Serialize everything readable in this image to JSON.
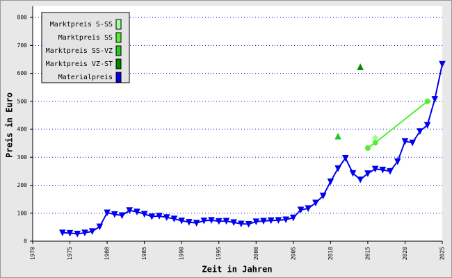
{
  "chart_data": {
    "type": "line",
    "xlabel": "Zeit in Jahren",
    "ylabel": "Preis in Euro",
    "xlim": [
      1970,
      2025
    ],
    "xticks": [
      1970,
      1975,
      1980,
      1985,
      1990,
      1995,
      2000,
      2005,
      2010,
      2015,
      2020,
      2025
    ],
    "ylim": [
      0,
      840
    ],
    "yticks": [
      0,
      100,
      200,
      300,
      400,
      500,
      600,
      700,
      800
    ],
    "grid": true,
    "legend": "upper left",
    "series": [
      {
        "name": "Marktpreis S-SS",
        "color": "#99ff99",
        "marker": "diamond",
        "x": [
          2016
        ],
        "values": [
          370
        ]
      },
      {
        "name": "Marktpreis SS",
        "color": "#55ee33",
        "marker": "circle",
        "x": [
          2015,
          2016,
          2023
        ],
        "values": [
          333,
          352,
          500
        ]
      },
      {
        "name": "Marktpreis SS-VZ",
        "color": "#22cc22",
        "marker": "triangle-up",
        "x": [
          2011
        ],
        "values": [
          375
        ]
      },
      {
        "name": "Marktpreis VZ-ST",
        "color": "#008800",
        "marker": "triangle-up",
        "x": [
          2014
        ],
        "values": [
          623
        ]
      },
      {
        "name": "Materialpreis",
        "color": "#0000ee",
        "marker": "triangle-down",
        "x": [
          1974,
          1975,
          1976,
          1977,
          1978,
          1979,
          1980,
          1981,
          1982,
          1983,
          1984,
          1985,
          1986,
          1987,
          1988,
          1989,
          1990,
          1991,
          1992,
          1993,
          1994,
          1995,
          1996,
          1997,
          1998,
          1999,
          2000,
          2001,
          2002,
          2003,
          2004,
          2005,
          2006,
          2007,
          2008,
          2009,
          2010,
          2011,
          2012,
          2013,
          2014,
          2015,
          2016,
          2017,
          2018,
          2019,
          2020,
          2021,
          2022,
          2023,
          2024,
          2025
        ],
        "values": [
          30,
          29,
          26,
          30,
          35,
          52,
          102,
          96,
          92,
          110,
          105,
          97,
          88,
          90,
          85,
          80,
          73,
          68,
          65,
          73,
          75,
          71,
          72,
          67,
          62,
          61,
          70,
          72,
          74,
          75,
          77,
          84,
          112,
          117,
          137,
          162,
          213,
          260,
          297,
          243,
          220,
          242,
          258,
          255,
          250,
          285,
          357,
          352,
          393,
          415,
          508,
          633
        ]
      }
    ]
  }
}
